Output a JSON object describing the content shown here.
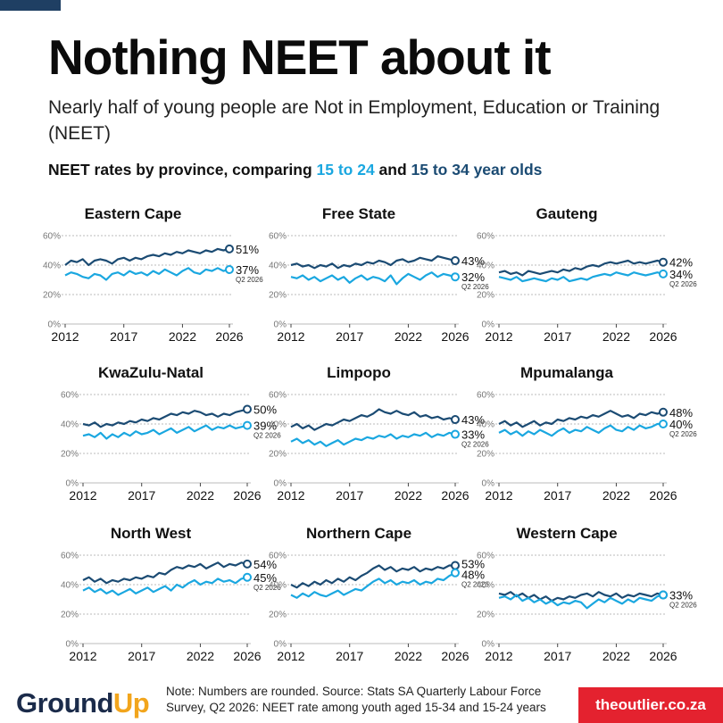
{
  "header": {
    "title": "Nothing NEET about it",
    "subtitle": "Nearly half of young people are Not in Employment, Education or Training (NEET)",
    "legend_prefix": "NEET rates by province, comparing ",
    "legend_series1": "15 to 24",
    "legend_mid": " and ",
    "legend_series2": "15 to 34 year olds"
  },
  "footer": {
    "logo_ground": "Ground",
    "logo_up": "Up",
    "note": "Note: Numbers are rounded. Source: Stats SA Quarterly Labour Force Survey, Q2 2026: NEET rate among youth aged 15-34 and 15-24 years",
    "badge": "theoutlier.co.za"
  },
  "colors": {
    "series_15_34": "#1b4b73",
    "series_15_24": "#1aa7e0"
  },
  "chart_data": [
    {
      "type": "line",
      "title": "Eastern Cape",
      "x_ticks": [
        "2012",
        "2017",
        "2022",
        "2026"
      ],
      "y_ticks": [
        "0%",
        "20%",
        "40%",
        "60%"
      ],
      "ylim": [
        0,
        60
      ],
      "xlim": [
        2012,
        2026
      ],
      "end_label_sub": "Q2 2026",
      "series": [
        {
          "name": "15 to 34 year olds",
          "values": [
            40,
            43,
            42,
            44,
            40,
            43,
            44,
            43,
            41,
            44,
            45,
            43,
            45,
            44,
            46,
            47,
            46,
            48,
            47,
            49,
            48,
            50,
            49,
            48,
            50,
            49,
            51,
            50,
            51
          ]
        },
        {
          "name": "15 to 24",
          "values": [
            33,
            35,
            34,
            32,
            31,
            34,
            33,
            30,
            34,
            35,
            33,
            36,
            34,
            35,
            33,
            36,
            34,
            37,
            35,
            33,
            36,
            38,
            35,
            34,
            37,
            36,
            38,
            36,
            37
          ]
        }
      ],
      "end_labels": [
        "51%",
        "37%"
      ]
    },
    {
      "type": "line",
      "title": "Free State",
      "x_ticks": [
        "2012",
        "2017",
        "2022",
        "2026"
      ],
      "y_ticks": [
        "0%",
        "20%",
        "40%",
        "60%"
      ],
      "ylim": [
        0,
        60
      ],
      "xlim": [
        2012,
        2026
      ],
      "end_label_sub": "Q2 2026",
      "series": [
        {
          "name": "15 to 34 year olds",
          "values": [
            40,
            41,
            39,
            40,
            38,
            40,
            39,
            41,
            38,
            40,
            39,
            41,
            40,
            42,
            41,
            43,
            42,
            40,
            43,
            44,
            42,
            43,
            45,
            44,
            43,
            46,
            45,
            44,
            43
          ]
        },
        {
          "name": "15 to 24",
          "values": [
            32,
            31,
            33,
            30,
            32,
            29,
            31,
            33,
            30,
            32,
            28,
            31,
            33,
            30,
            32,
            31,
            29,
            33,
            27,
            31,
            34,
            32,
            30,
            33,
            35,
            32,
            34,
            33,
            32
          ]
        }
      ],
      "end_labels": [
        "43%",
        "32%"
      ]
    },
    {
      "type": "line",
      "title": "Gauteng",
      "x_ticks": [
        "2012",
        "2017",
        "2022",
        "2026"
      ],
      "y_ticks": [
        "0%",
        "20%",
        "40%",
        "60%"
      ],
      "ylim": [
        0,
        60
      ],
      "xlim": [
        2012,
        2026
      ],
      "end_label_sub": "Q2 2026",
      "series": [
        {
          "name": "15 to 34 year olds",
          "values": [
            35,
            36,
            34,
            35,
            33,
            36,
            35,
            34,
            35,
            36,
            35,
            37,
            36,
            38,
            37,
            39,
            40,
            39,
            41,
            42,
            41,
            42,
            43,
            41,
            42,
            41,
            42,
            43,
            42
          ]
        },
        {
          "name": "15 to 24",
          "values": [
            32,
            31,
            30,
            32,
            29,
            30,
            31,
            30,
            29,
            31,
            30,
            32,
            29,
            30,
            31,
            30,
            32,
            33,
            34,
            33,
            35,
            34,
            33,
            35,
            34,
            33,
            34,
            35,
            34
          ]
        }
      ],
      "end_labels": [
        "42%",
        "34%"
      ]
    },
    {
      "type": "line",
      "title": "KwaZulu-Natal",
      "x_ticks": [
        "2012",
        "2017",
        "2022",
        "2026"
      ],
      "y_ticks": [
        "0%",
        "20%",
        "40%",
        "60%"
      ],
      "ylim": [
        0,
        60
      ],
      "xlim": [
        2012,
        2026
      ],
      "end_label_sub": "Q2 2026",
      "series": [
        {
          "name": "15 to 34 year olds",
          "values": [
            40,
            39,
            41,
            38,
            40,
            39,
            41,
            40,
            42,
            41,
            43,
            42,
            44,
            43,
            45,
            47,
            46,
            48,
            47,
            49,
            48,
            46,
            47,
            45,
            47,
            46,
            48,
            49,
            50
          ]
        },
        {
          "name": "15 to 24",
          "values": [
            32,
            33,
            31,
            34,
            30,
            33,
            31,
            34,
            32,
            35,
            33,
            34,
            36,
            33,
            35,
            37,
            34,
            36,
            38,
            35,
            37,
            39,
            36,
            38,
            37,
            39,
            37,
            38,
            39
          ]
        }
      ],
      "end_labels": [
        "50%",
        "39%"
      ]
    },
    {
      "type": "line",
      "title": "Limpopo",
      "x_ticks": [
        "2012",
        "2017",
        "2022",
        "2026"
      ],
      "y_ticks": [
        "0%",
        "20%",
        "40%",
        "60%"
      ],
      "ylim": [
        0,
        60
      ],
      "xlim": [
        2012,
        2026
      ],
      "end_label_sub": "Q2 2026",
      "series": [
        {
          "name": "15 to 34 year olds",
          "values": [
            38,
            40,
            37,
            39,
            36,
            38,
            40,
            39,
            41,
            43,
            42,
            44,
            46,
            45,
            47,
            50,
            48,
            47,
            49,
            47,
            46,
            48,
            45,
            46,
            44,
            45,
            43,
            44,
            43
          ]
        },
        {
          "name": "15 to 24",
          "values": [
            28,
            30,
            27,
            29,
            26,
            28,
            25,
            27,
            29,
            26,
            28,
            30,
            29,
            31,
            30,
            32,
            31,
            33,
            30,
            32,
            31,
            33,
            32,
            34,
            31,
            33,
            32,
            34,
            33
          ]
        }
      ],
      "end_labels": [
        "43%",
        "33%"
      ]
    },
    {
      "type": "line",
      "title": "Mpumalanga",
      "x_ticks": [
        "2012",
        "2017",
        "2022",
        "2026"
      ],
      "y_ticks": [
        "0%",
        "20%",
        "40%",
        "60%"
      ],
      "ylim": [
        0,
        60
      ],
      "xlim": [
        2012,
        2026
      ],
      "end_label_sub": "Q2 2026",
      "series": [
        {
          "name": "15 to 34 year olds",
          "values": [
            40,
            42,
            39,
            41,
            38,
            40,
            42,
            39,
            41,
            40,
            43,
            42,
            44,
            43,
            45,
            44,
            46,
            45,
            47,
            49,
            47,
            45,
            46,
            44,
            47,
            46,
            48,
            47,
            48
          ]
        },
        {
          "name": "15 to 24",
          "values": [
            34,
            36,
            33,
            35,
            32,
            35,
            33,
            36,
            34,
            32,
            35,
            37,
            34,
            36,
            35,
            38,
            36,
            34,
            37,
            39,
            36,
            35,
            38,
            36,
            39,
            37,
            38,
            40,
            40
          ]
        }
      ],
      "end_labels": [
        "48%",
        "40%"
      ]
    },
    {
      "type": "line",
      "title": "North West",
      "x_ticks": [
        "2012",
        "2017",
        "2022",
        "2026"
      ],
      "y_ticks": [
        "0%",
        "20%",
        "40%",
        "60%"
      ],
      "ylim": [
        0,
        60
      ],
      "xlim": [
        2012,
        2026
      ],
      "end_label_sub": "Q2 2026",
      "series": [
        {
          "name": "15 to 34 year olds",
          "values": [
            43,
            45,
            42,
            44,
            41,
            43,
            42,
            44,
            43,
            45,
            44,
            46,
            45,
            48,
            47,
            50,
            52,
            51,
            53,
            52,
            54,
            51,
            53,
            55,
            52,
            54,
            53,
            55,
            54
          ]
        },
        {
          "name": "15 to 24",
          "values": [
            36,
            38,
            35,
            37,
            34,
            36,
            33,
            35,
            37,
            34,
            36,
            38,
            35,
            37,
            39,
            36,
            40,
            38,
            41,
            43,
            40,
            42,
            41,
            44,
            42,
            43,
            41,
            44,
            45
          ]
        }
      ],
      "end_labels": [
        "54%",
        "45%"
      ]
    },
    {
      "type": "line",
      "title": "Northern Cape",
      "x_ticks": [
        "2012",
        "2017",
        "2022",
        "2026"
      ],
      "y_ticks": [
        "0%",
        "20%",
        "40%",
        "60%"
      ],
      "ylim": [
        0,
        60
      ],
      "xlim": [
        2012,
        2026
      ],
      "end_label_sub": "Q2 2026",
      "series": [
        {
          "name": "15 to 34 year olds",
          "values": [
            40,
            38,
            41,
            39,
            42,
            40,
            43,
            41,
            44,
            42,
            45,
            43,
            46,
            48,
            51,
            53,
            50,
            52,
            49,
            51,
            50,
            52,
            49,
            51,
            50,
            52,
            51,
            53,
            53
          ]
        },
        {
          "name": "15 to 24",
          "values": [
            33,
            31,
            34,
            32,
            35,
            33,
            32,
            34,
            36,
            33,
            35,
            37,
            36,
            39,
            42,
            44,
            41,
            43,
            40,
            42,
            41,
            43,
            40,
            42,
            41,
            44,
            43,
            46,
            48
          ]
        }
      ],
      "end_labels": [
        "53%",
        "48%"
      ]
    },
    {
      "type": "line",
      "title": "Western Cape",
      "x_ticks": [
        "2012",
        "2017",
        "2022",
        "2026"
      ],
      "y_ticks": [
        "0%",
        "20%",
        "40%",
        "60%"
      ],
      "ylim": [
        0,
        60
      ],
      "xlim": [
        2012,
        2026
      ],
      "end_label_sub": "Q2 2026",
      "series": [
        {
          "name": "15 to 34 year olds",
          "values": [
            34,
            33,
            35,
            32,
            34,
            31,
            33,
            30,
            32,
            29,
            31,
            30,
            32,
            31,
            33,
            34,
            32,
            35,
            33,
            32,
            34,
            31,
            33,
            32,
            34,
            33,
            32,
            34,
            33
          ]
        },
        {
          "name": "15 to 24",
          "values": [
            31,
            32,
            30,
            33,
            29,
            31,
            28,
            30,
            27,
            29,
            26,
            28,
            27,
            29,
            28,
            24,
            27,
            30,
            28,
            31,
            29,
            27,
            30,
            28,
            31,
            30,
            29,
            32,
            33
          ]
        }
      ],
      "end_labels": [
        "33%"
      ]
    }
  ]
}
